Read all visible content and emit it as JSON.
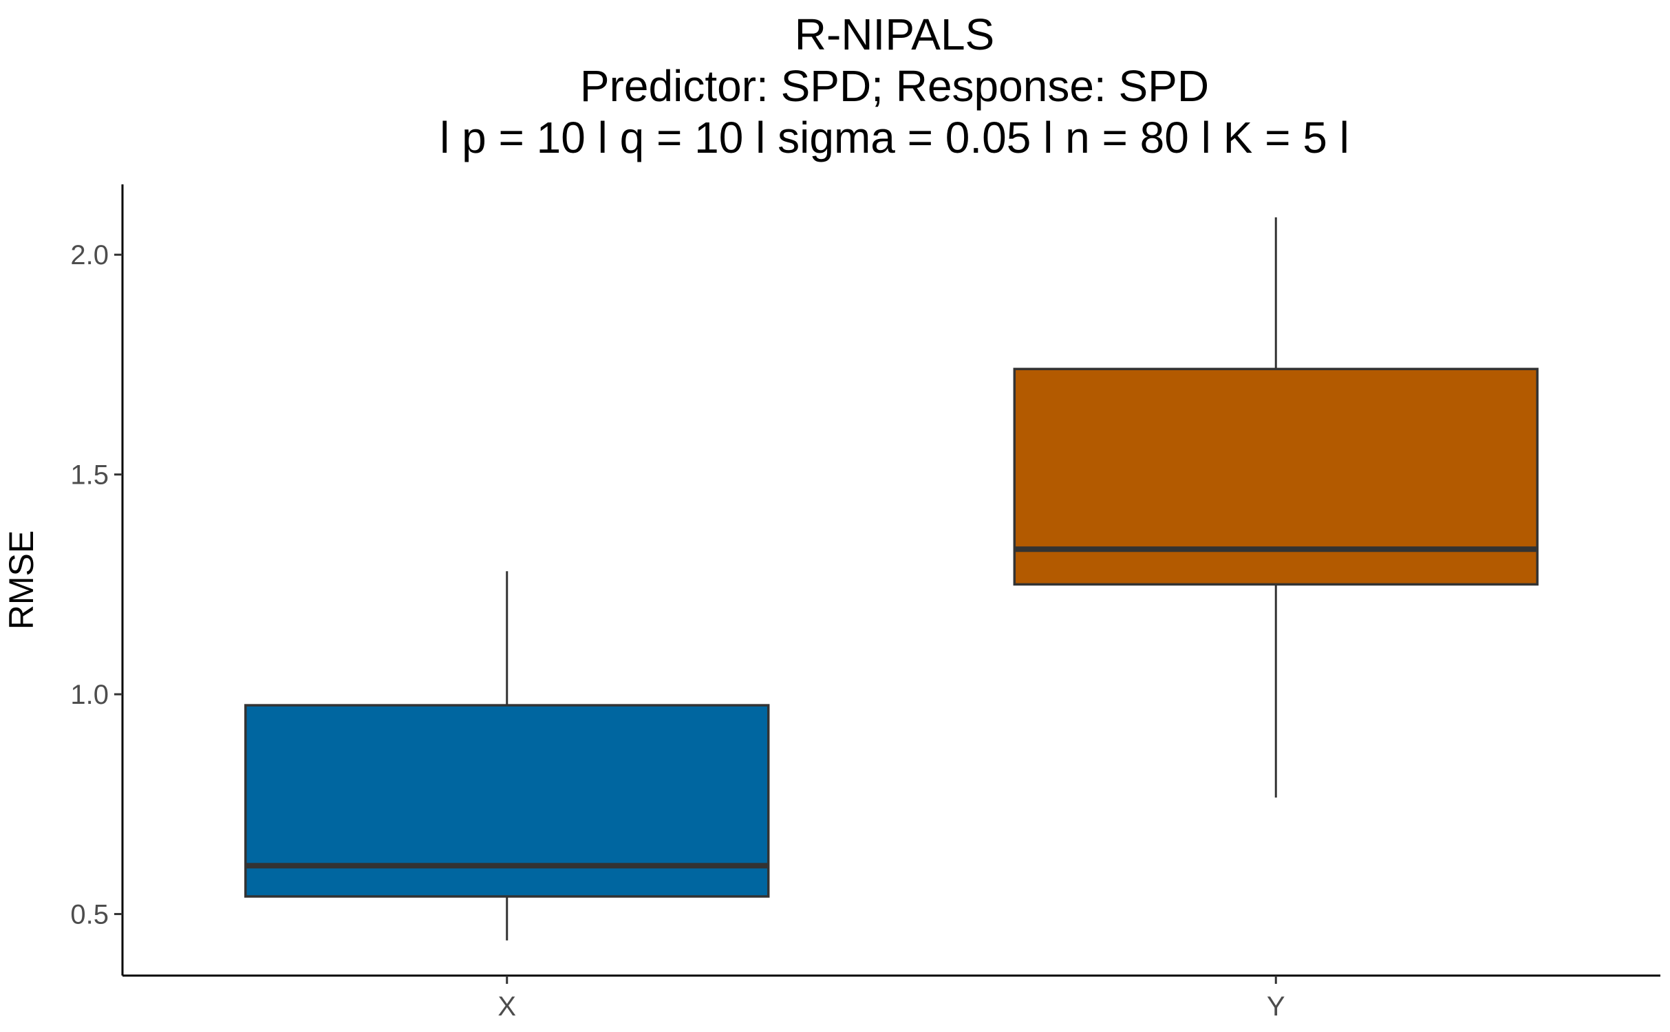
{
  "chart_data": {
    "type": "boxplot",
    "title_lines": [
      "R-NIPALS",
      "Predictor: SPD; Response: SPD",
      "l p = 10 l q = 10 l sigma = 0.05 l n = 80 l K = 5 l"
    ],
    "xlabel": "",
    "ylabel": "RMSE",
    "ylim": [
      0.36,
      2.16
    ],
    "yticks": [
      0.5,
      1.0,
      1.5,
      2.0
    ],
    "ytick_labels": [
      "0.5",
      "1.0",
      "1.5",
      "2.0"
    ],
    "categories": [
      "X",
      "Y"
    ],
    "boxes": [
      {
        "category": "X",
        "min": 0.44,
        "q1": 0.54,
        "median": 0.61,
        "q3": 0.975,
        "max": 1.28,
        "color": "#0066a0"
      },
      {
        "category": "Y",
        "min": 0.765,
        "q1": 1.25,
        "median": 1.33,
        "q3": 1.74,
        "max": 2.085,
        "color": "#b35a00"
      }
    ],
    "grid": false,
    "legend": "none"
  }
}
